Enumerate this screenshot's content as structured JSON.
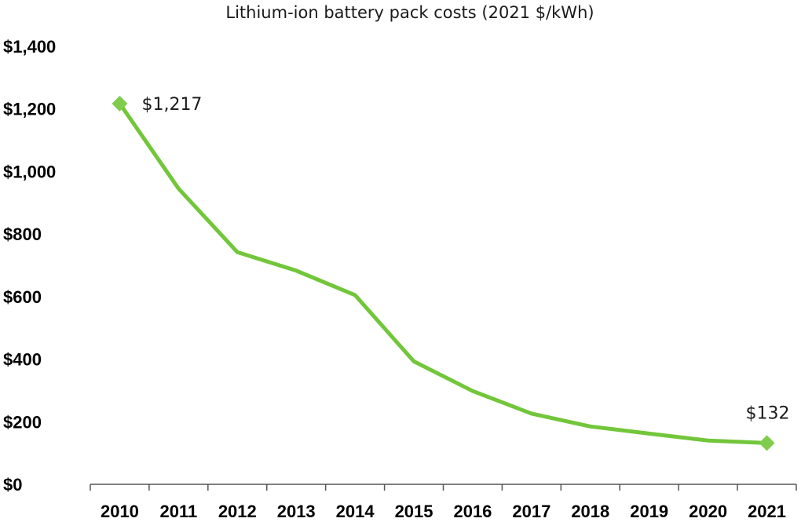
{
  "chart_data": {
    "type": "line",
    "title": "Lithium-ion battery pack costs (2021 $/kWh)",
    "xlabel": "",
    "ylabel": "",
    "categories": [
      "2010",
      "2011",
      "2012",
      "2013",
      "2014",
      "2015",
      "2016",
      "2017",
      "2018",
      "2019",
      "2020",
      "2021"
    ],
    "series": [
      {
        "values": [
          1217,
          945,
          742,
          683,
          605,
          393,
          298,
          226,
          185,
          162,
          140,
          132
        ],
        "color": "#72c63a"
      }
    ],
    "ylim": [
      0,
      1400
    ],
    "yticks": [
      0,
      200,
      400,
      600,
      800,
      1000,
      1200,
      1400
    ],
    "ytick_labels": [
      "$0",
      "$200",
      "$400",
      "$600",
      "$800",
      "$1,000",
      "$1,200",
      "$1,400"
    ],
    "data_labels": [
      {
        "index": 0,
        "text": "$1,217",
        "position": "right"
      },
      {
        "index": 11,
        "text": "$132",
        "position": "above"
      }
    ],
    "markers": "diamond at first and last points",
    "grid": false,
    "legend": "none"
  }
}
